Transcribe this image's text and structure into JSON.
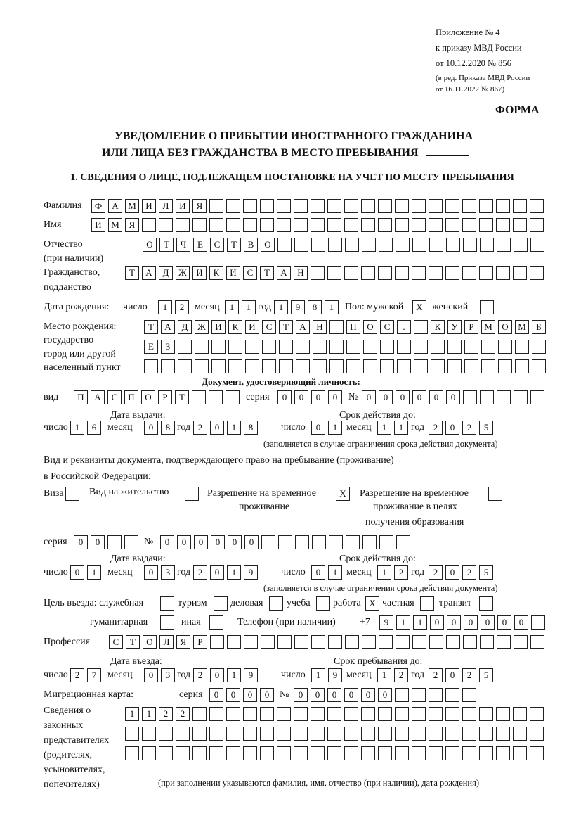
{
  "header": {
    "appendix": [
      "Приложение № 4",
      "к приказу МВД России",
      "от 10.12.2020 № 856"
    ],
    "revision": [
      "(в ред. Приказа МВД России",
      "от 16.11.2022 № 867)"
    ],
    "forma": "ФОРМА",
    "title": [
      "УВЕДОМЛЕНИЕ О ПРИБЫТИИ ИНОСТРАННОГО ГРАЖДАНИНА",
      "ИЛИ ЛИЦА БЕЗ ГРАЖДАНСТВА В МЕСТО ПРЕБЫВАНИЯ"
    ],
    "section1": "1. СВЕДЕНИЯ О ЛИЦЕ, ПОДЛЕЖАЩЕМ ПОСТАНОВКЕ НА УЧЕТ ПО МЕСТУ ПРЕБЫВАНИЯ"
  },
  "labels": {
    "surname": "Фамилия",
    "name": "Имя",
    "patronymic": "Отчество",
    "patronymic_note": "(при наличии)",
    "citizenship": "Гражданство,",
    "citizenship2": "подданство",
    "birth_date": "Дата рождения:",
    "day": "число",
    "month": "месяц",
    "year": "год",
    "sex_male": "Пол: мужской",
    "sex_female": "женский",
    "birthplace": [
      "Место рождения:",
      "государство",
      "город или другой",
      "населенный пункт"
    ],
    "id_doc": "Документ, удостоверяющий личность:",
    "kind": "вид",
    "series": "серия",
    "number": "№",
    "issue_date": "Дата выдачи:",
    "valid_until": "Срок действия до:",
    "validity_note": "(заполняется в случае ограничения срока действия документа)",
    "permit_intro": [
      "Вид и реквизиты документа, подтверждающего право на пребывание (проживание)",
      "в Российской Федерации:"
    ],
    "visa": "Виза",
    "residence": "Вид на жительство",
    "trp": [
      "Разрешение на временное",
      "проживание"
    ],
    "trp_edu": [
      "Разрешение на временное",
      "проживание в целях",
      "получения образования"
    ],
    "purpose": "Цель въезда: служебная",
    "tourism": "туризм",
    "business": "деловая",
    "study": "учеба",
    "work": "работа",
    "private": "частная",
    "transit": "транзит",
    "humanitarian": "гуманитарная",
    "other": "иная",
    "phone": "Телефон (при наличии)",
    "phone_prefix": "+7",
    "profession": "Профессия",
    "entry_date": "Дата въезда:",
    "stay_until": "Срок пребывания до:",
    "migration_card": "Миграционная карта:",
    "representatives": [
      "Сведения о",
      "законных",
      "представителях",
      "(родителях,",
      "усыновителях,",
      "попечителях)"
    ],
    "representatives_note": "(при заполнении указываются фамилия, имя, отчество (при наличии), дата рождения)"
  },
  "fields": {
    "surname": "ФАМИЛИЯ",
    "name": "ИМЯ",
    "patronymic": "ОТЧЕСТВО",
    "citizenship": "ТАДЖИКИСТАН",
    "birth_day": "12",
    "birth_month": "11",
    "birth_year": "1981",
    "sex_male": "X",
    "sex_female": "",
    "birthplace_1": "ТАДЖИКИСТАН ПОС. КУРМОМБ",
    "birthplace_2": "ЕЗ",
    "birthplace_3": "",
    "doc_type": "ПАСПОРТ",
    "doc_series": "0000",
    "doc_number": "000000",
    "doc_issue_day": "16",
    "doc_issue_month": "08",
    "doc_issue_year": "2018",
    "doc_exp_day": "01",
    "doc_exp_month": "11",
    "doc_exp_year": "2025",
    "visa": "",
    "residence": "",
    "trp": "X",
    "trp_edu": "",
    "permit_series": "00",
    "permit_number": "000000",
    "permit_issue_day": "01",
    "permit_issue_month": "03",
    "permit_issue_year": "2019",
    "permit_exp_day": "01",
    "permit_exp_month": "12",
    "permit_exp_year": "2025",
    "purpose_official": "",
    "purpose_tourism": "",
    "purpose_business": "",
    "purpose_study": "",
    "purpose_work": "X",
    "purpose_private": "",
    "purpose_transit": "",
    "purpose_humanitarian": "",
    "purpose_other": "",
    "phone": "911000000",
    "profession": "СТОЛЯР",
    "entry_day": "27",
    "entry_month": "03",
    "entry_year": "2019",
    "stay_day": "19",
    "stay_month": "12",
    "stay_year": "2025",
    "mig_series": "0000",
    "mig_number": "000000",
    "rep_1": "1122",
    "rep_2": "",
    "rep_3": ""
  }
}
